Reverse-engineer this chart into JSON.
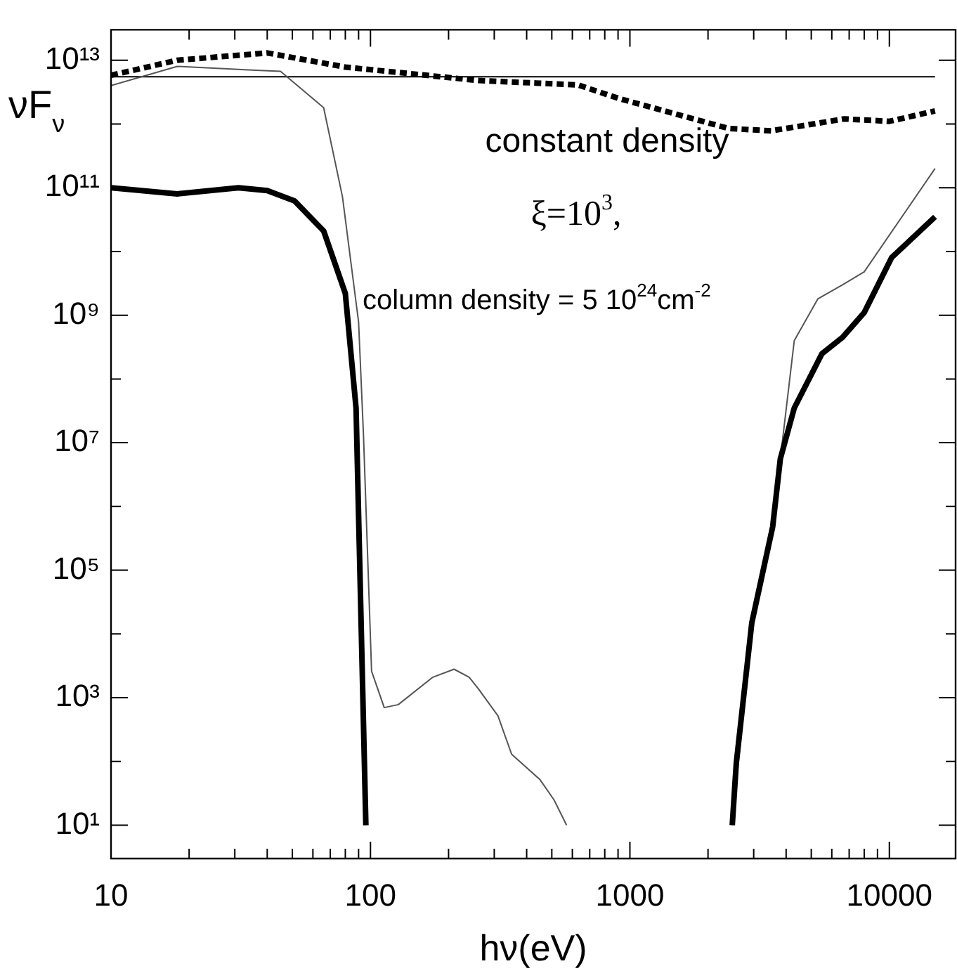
{
  "chart_data": {
    "type": "line",
    "xlabel": "hν(eV)",
    "ylabel": "νF$_{ν}$",
    "log": "xy",
    "marker": "none",
    "xlim": [
      10,
      18000
    ],
    "ylim": [
      3,
      30000000000000
    ],
    "xticks": [
      10,
      {
        "value": 20,
        "label": null
      },
      {
        "value": 30,
        "label": null
      },
      {
        "value": 40,
        "label": null
      },
      {
        "value": 50,
        "label": null
      },
      {
        "value": 60,
        "label": null
      },
      {
        "value": 70,
        "label": null
      },
      {
        "value": 80,
        "label": null
      },
      {
        "value": 90,
        "label": null
      },
      100,
      {
        "value": 200,
        "label": null
      },
      {
        "value": 300,
        "label": null
      },
      {
        "value": 400,
        "label": null
      },
      {
        "value": 500,
        "label": null
      },
      {
        "value": 600,
        "label": null
      },
      {
        "value": 700,
        "label": null
      },
      {
        "value": 800,
        "label": null
      },
      {
        "value": 900,
        "label": null
      },
      1000,
      {
        "value": 2000,
        "label": null
      },
      {
        "value": 3000,
        "label": null
      },
      {
        "value": 4000,
        "label": null
      },
      {
        "value": 5000,
        "label": null
      },
      {
        "value": 6000,
        "label": null
      },
      {
        "value": 7000,
        "label": null
      },
      {
        "value": 8000,
        "label": null
      },
      {
        "value": 9000,
        "label": null
      },
      10000
    ],
    "yticks": [
      {
        "value": 10,
        "label": "10¹"
      },
      {
        "value": 100,
        "label": null
      },
      {
        "value": 1000,
        "label": "10³"
      },
      {
        "value": 10000,
        "label": null
      },
      {
        "value": 100000,
        "label": "10⁵"
      },
      {
        "value": 1000000,
        "label": null
      },
      {
        "value": 10000000,
        "label": "10⁷"
      },
      {
        "value": 100000000,
        "label": null
      },
      {
        "value": 1000000000,
        "label": "10⁹"
      },
      {
        "value": 10000000000,
        "label": null
      },
      {
        "value": 100000000000,
        "label": "10¹¹"
      },
      {
        "value": 1000000000000,
        "label": null
      },
      {
        "value": 10000000000000,
        "label": "10¹³"
      }
    ],
    "series": [
      {
        "color": "#000000",
        "x": [
          10,
          18,
          31,
          40,
          51,
          66,
          80,
          88,
          96,
          1000,
          2480,
          2570,
          2950,
          3550,
          3800,
          4300,
          5500,
          6600,
          8000,
          10200,
          15000
        ],
        "values": [
          100000000000,
          80000000000,
          100000000000,
          90000000000,
          62000000000,
          21000000000,
          2200000000,
          35000000,
          10,
          null,
          10,
          93,
          15000,
          480000,
          5600000,
          35000000,
          250000000,
          450000000,
          1100000000,
          8000000000,
          35000000000
        ]
      },
      {
        "color": "#555555",
        "x": [
          10,
          18,
          35,
          45,
          66,
          78,
          90,
          94,
          101,
          113,
          128,
          174,
          210,
          240,
          260,
          310,
          350,
          450,
          510,
          570,
          1000,
          2480,
          2950,
          3550,
          3800,
          4300,
          5300,
          6600,
          8000,
          15000
        ],
        "values": [
          4000000000000,
          8000000000000,
          7000000000000,
          6700000000000,
          1800000000000,
          72000000000,
          780000000,
          13000000,
          2600,
          700,
          780,
          2100,
          2800,
          2100,
          1400,
          520,
          130,
          52,
          25,
          10,
          null,
          10,
          15000,
          480000,
          5600000,
          400000000,
          1800000000,
          3000000000,
          4800000000,
          200000000000
        ]
      },
      {
        "color": "#000000",
        "line_style": "dotted",
        "x": [
          10,
          18,
          40,
          80,
          260,
          630,
          910,
          2400,
          3500,
          6700,
          10000,
          15000
        ],
        "values": [
          5800000000000,
          10000000000000,
          13000000000000,
          7800000000000,
          4800000000000,
          4100000000000,
          2500000000000,
          850000000000,
          780000000000,
          1200000000000,
          1100000000000,
          1600000000000
        ]
      },
      {
        "color": "#000000",
        "x": [
          10,
          15000
        ],
        "values": [
          5500000000000,
          5500000000000
        ]
      }
    ],
    "annotations": [
      "constant density",
      "ξ=10$^{3}$,",
      "column density = 5 10$^{24}$cm$^{-2}$"
    ]
  }
}
